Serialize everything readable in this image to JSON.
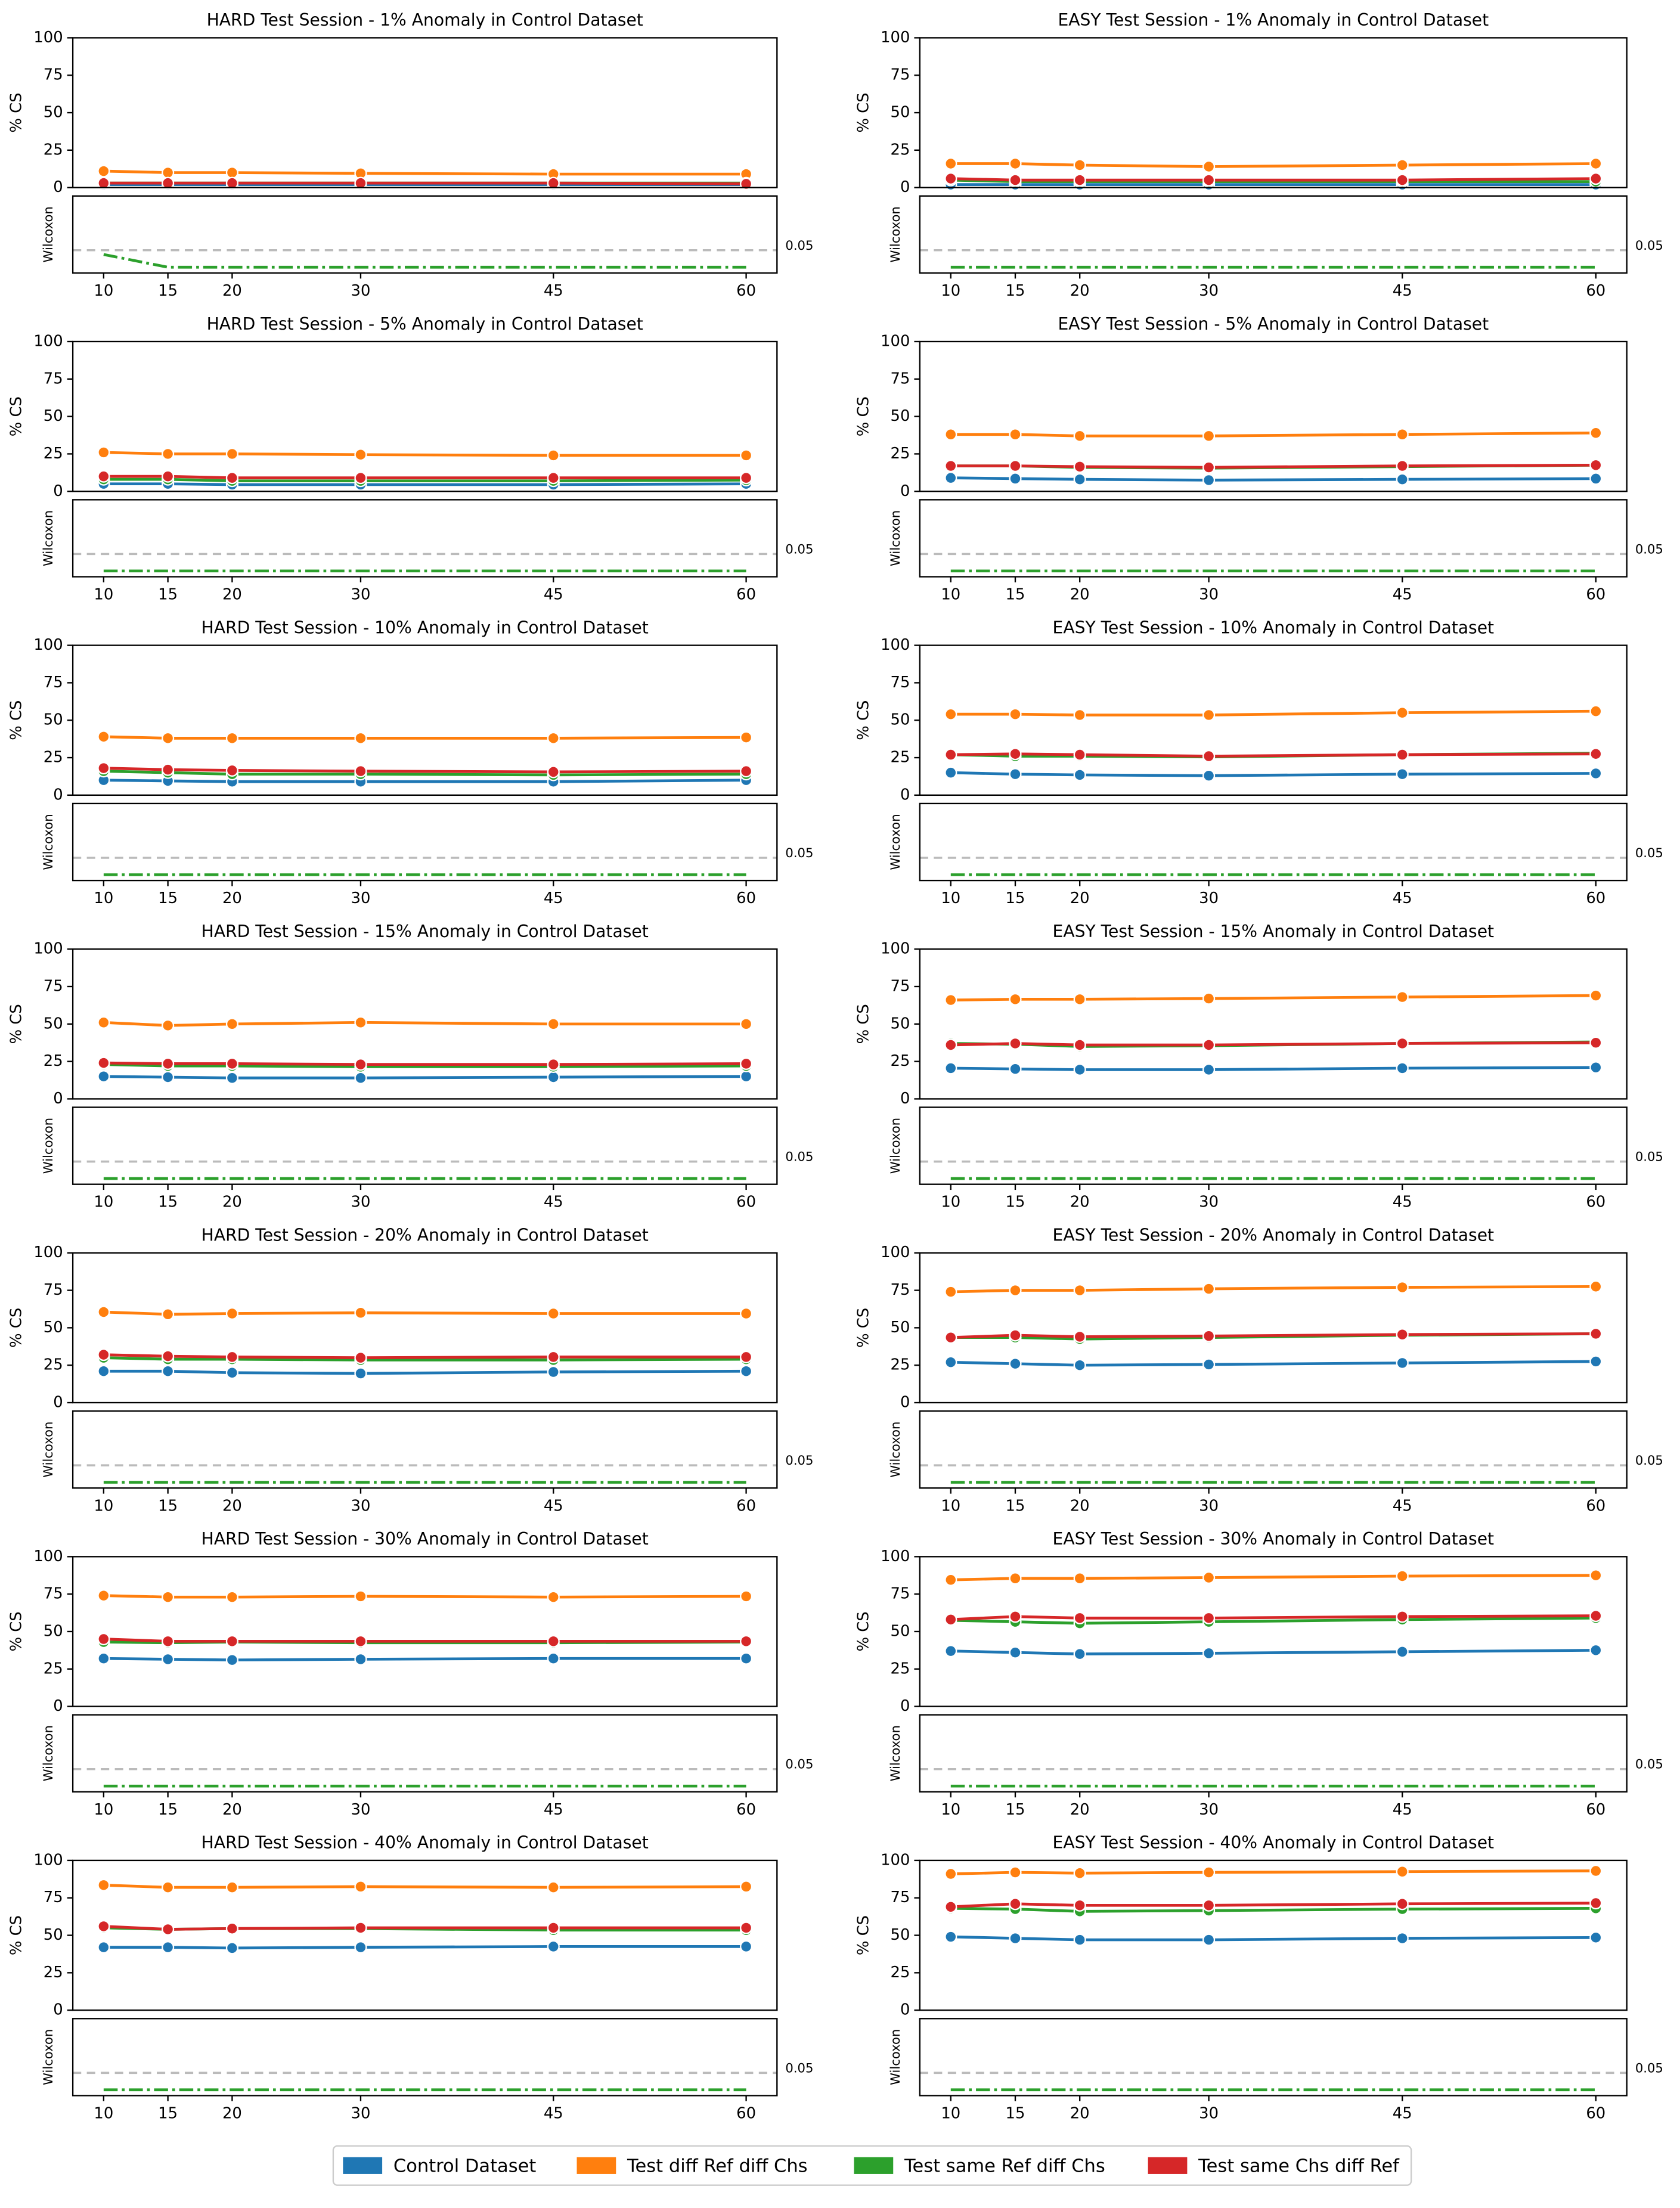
{
  "chart_data": [
    {
      "type": "line",
      "title": "HARD Test Session - 1% Anomaly in Control Dataset",
      "ylabel": "% CS",
      "x": [
        10,
        15,
        20,
        30,
        45,
        60
      ],
      "xlim": [
        7.6,
        62.4
      ],
      "xticks": [
        10,
        15,
        20,
        30,
        45,
        60
      ],
      "ylim": [
        0,
        100
      ],
      "yticks": [
        0,
        25,
        50,
        75,
        100
      ],
      "series": [
        {
          "values": [
            2,
            2,
            2,
            2,
            2,
            2
          ]
        },
        {
          "values": [
            11,
            10,
            10,
            9.5,
            9,
            9
          ]
        },
        {
          "values": [
            3,
            3,
            3,
            3,
            3,
            3
          ]
        },
        {
          "values": [
            3,
            3,
            3,
            3,
            3,
            2.5
          ]
        }
      ],
      "wilcoxon": {
        "ylabel": "Wilcoxon",
        "ylim": [
          -0.017,
          0.21
        ],
        "threshold": 0.05,
        "values": [
          0.0375,
          0,
          0,
          0,
          0,
          0
        ]
      }
    },
    {
      "type": "line",
      "title": "EASY Test Session - 1% Anomaly in Control Dataset",
      "ylabel": "% CS",
      "x": [
        10,
        15,
        20,
        30,
        45,
        60
      ],
      "xlim": [
        7.6,
        62.4
      ],
      "xticks": [
        10,
        15,
        20,
        30,
        45,
        60
      ],
      "ylim": [
        0,
        100
      ],
      "yticks": [
        0,
        25,
        50,
        75,
        100
      ],
      "series": [
        {
          "values": [
            2,
            2,
            2,
            2,
            2,
            2
          ]
        },
        {
          "values": [
            16,
            16,
            15,
            14,
            15,
            16
          ]
        },
        {
          "values": [
            5,
            4,
            4,
            4,
            4,
            4
          ]
        },
        {
          "values": [
            6,
            5,
            5,
            5,
            5,
            6
          ]
        }
      ],
      "wilcoxon": {
        "ylabel": "Wilcoxon",
        "ylim": [
          -0.017,
          0.21
        ],
        "threshold": 0.05,
        "values": [
          0,
          0,
          0,
          0,
          0,
          0
        ]
      }
    },
    {
      "type": "line",
      "title": "HARD Test Session - 5% Anomaly in Control Dataset",
      "ylabel": "% CS",
      "x": [
        10,
        15,
        20,
        30,
        45,
        60
      ],
      "xlim": [
        7.6,
        62.4
      ],
      "xticks": [
        10,
        15,
        20,
        30,
        45,
        60
      ],
      "ylim": [
        0,
        100
      ],
      "yticks": [
        0,
        25,
        50,
        75,
        100
      ],
      "series": [
        {
          "values": [
            5,
            5,
            4.5,
            4.5,
            4.5,
            5
          ]
        },
        {
          "values": [
            26,
            25,
            25,
            24.5,
            24,
            24
          ]
        },
        {
          "values": [
            8,
            8,
            7,
            7,
            7,
            7.5
          ]
        },
        {
          "values": [
            10,
            10,
            9,
            9,
            9,
            9
          ]
        }
      ],
      "wilcoxon": {
        "ylabel": "Wilcoxon",
        "ylim": [
          -0.017,
          0.21
        ],
        "threshold": 0.05,
        "values": [
          0,
          0,
          0,
          0,
          0,
          0
        ]
      }
    },
    {
      "type": "line",
      "title": "EASY Test Session - 5% Anomaly in Control Dataset",
      "ylabel": "% CS",
      "x": [
        10,
        15,
        20,
        30,
        45,
        60
      ],
      "xlim": [
        7.6,
        62.4
      ],
      "xticks": [
        10,
        15,
        20,
        30,
        45,
        60
      ],
      "ylim": [
        0,
        100
      ],
      "yticks": [
        0,
        25,
        50,
        75,
        100
      ],
      "series": [
        {
          "values": [
            9,
            8.5,
            8,
            7.5,
            8,
            8.5
          ]
        },
        {
          "values": [
            38,
            38,
            37,
            37,
            38,
            39
          ]
        },
        {
          "values": [
            17,
            17,
            16,
            15.5,
            16.5,
            17.5
          ]
        },
        {
          "values": [
            17,
            17,
            16.5,
            16,
            17,
            17.5
          ]
        }
      ],
      "wilcoxon": {
        "ylabel": "Wilcoxon",
        "ylim": [
          -0.017,
          0.21
        ],
        "threshold": 0.05,
        "values": [
          0,
          0,
          0,
          0,
          0,
          0
        ]
      }
    },
    {
      "type": "line",
      "title": "HARD Test Session - 10% Anomaly in Control Dataset",
      "ylabel": "% CS",
      "x": [
        10,
        15,
        20,
        30,
        45,
        60
      ],
      "xlim": [
        7.6,
        62.4
      ],
      "xticks": [
        10,
        15,
        20,
        30,
        45,
        60
      ],
      "ylim": [
        0,
        100
      ],
      "yticks": [
        0,
        25,
        50,
        75,
        100
      ],
      "series": [
        {
          "values": [
            10,
            9.5,
            9,
            9,
            9,
            10
          ]
        },
        {
          "values": [
            39,
            38,
            38,
            38,
            38,
            38.5
          ]
        },
        {
          "values": [
            16,
            15,
            14,
            14,
            13.5,
            14
          ]
        },
        {
          "values": [
            18,
            17,
            16.5,
            16,
            15.5,
            16
          ]
        }
      ],
      "wilcoxon": {
        "ylabel": "Wilcoxon",
        "ylim": [
          -0.017,
          0.21
        ],
        "threshold": 0.05,
        "values": [
          0,
          0,
          0,
          0,
          0,
          0
        ]
      }
    },
    {
      "type": "line",
      "title": "EASY Test Session - 10% Anomaly in Control Dataset",
      "ylabel": "% CS",
      "x": [
        10,
        15,
        20,
        30,
        45,
        60
      ],
      "xlim": [
        7.6,
        62.4
      ],
      "xticks": [
        10,
        15,
        20,
        30,
        45,
        60
      ],
      "ylim": [
        0,
        100
      ],
      "yticks": [
        0,
        25,
        50,
        75,
        100
      ],
      "series": [
        {
          "values": [
            15,
            14,
            13.5,
            13,
            14,
            14.5
          ]
        },
        {
          "values": [
            54,
            54,
            53.5,
            53.5,
            55,
            56
          ]
        },
        {
          "values": [
            27,
            26,
            26,
            25.5,
            27,
            28
          ]
        },
        {
          "values": [
            27,
            27.5,
            27,
            26,
            27,
            27.5
          ]
        }
      ],
      "wilcoxon": {
        "ylabel": "Wilcoxon",
        "ylim": [
          -0.017,
          0.21
        ],
        "threshold": 0.05,
        "values": [
          0,
          0,
          0,
          0,
          0,
          0
        ]
      }
    },
    {
      "type": "line",
      "title": "HARD Test Session - 15% Anomaly in Control Dataset",
      "ylabel": "% CS",
      "x": [
        10,
        15,
        20,
        30,
        45,
        60
      ],
      "xlim": [
        7.6,
        62.4
      ],
      "xticks": [
        10,
        15,
        20,
        30,
        45,
        60
      ],
      "ylim": [
        0,
        100
      ],
      "yticks": [
        0,
        25,
        50,
        75,
        100
      ],
      "series": [
        {
          "values": [
            15,
            14.5,
            14,
            14,
            14.5,
            15
          ]
        },
        {
          "values": [
            51,
            49,
            50,
            51,
            50,
            50
          ]
        },
        {
          "values": [
            23,
            22,
            22,
            21.5,
            21.5,
            22
          ]
        },
        {
          "values": [
            24,
            23.5,
            23.5,
            23,
            23,
            23.5
          ]
        }
      ],
      "wilcoxon": {
        "ylabel": "Wilcoxon",
        "ylim": [
          -0.017,
          0.21
        ],
        "threshold": 0.05,
        "values": [
          0,
          0,
          0,
          0,
          0,
          0
        ]
      }
    },
    {
      "type": "line",
      "title": "EASY Test Session - 15% Anomaly in Control Dataset",
      "ylabel": "% CS",
      "x": [
        10,
        15,
        20,
        30,
        45,
        60
      ],
      "xlim": [
        7.6,
        62.4
      ],
      "xticks": [
        10,
        15,
        20,
        30,
        45,
        60
      ],
      "ylim": [
        0,
        100
      ],
      "yticks": [
        0,
        25,
        50,
        75,
        100
      ],
      "series": [
        {
          "values": [
            20.5,
            20,
            19.5,
            19.5,
            20.5,
            21
          ]
        },
        {
          "values": [
            66,
            66.5,
            66.5,
            67,
            68,
            69
          ]
        },
        {
          "values": [
            37,
            36.5,
            35,
            35.5,
            37,
            38
          ]
        },
        {
          "values": [
            36,
            37,
            36,
            36,
            37,
            37.5
          ]
        }
      ],
      "wilcoxon": {
        "ylabel": "Wilcoxon",
        "ylim": [
          -0.017,
          0.21
        ],
        "threshold": 0.05,
        "values": [
          0,
          0,
          0,
          0,
          0,
          0
        ]
      }
    },
    {
      "type": "line",
      "title": "HARD Test Session - 20% Anomaly in Control Dataset",
      "ylabel": "% CS",
      "x": [
        10,
        15,
        20,
        30,
        45,
        60
      ],
      "xlim": [
        7.6,
        62.4
      ],
      "xticks": [
        10,
        15,
        20,
        30,
        45,
        60
      ],
      "ylim": [
        0,
        100
      ],
      "yticks": [
        0,
        25,
        50,
        75,
        100
      ],
      "series": [
        {
          "values": [
            21,
            21,
            20,
            19.5,
            20.5,
            21
          ]
        },
        {
          "values": [
            60.5,
            59,
            59.5,
            60,
            59.5,
            59.5
          ]
        },
        {
          "values": [
            30,
            29,
            29,
            28.5,
            28.5,
            29
          ]
        },
        {
          "values": [
            32,
            31,
            30.5,
            30,
            30.5,
            30.5
          ]
        }
      ],
      "wilcoxon": {
        "ylabel": "Wilcoxon",
        "ylim": [
          -0.017,
          0.21
        ],
        "threshold": 0.05,
        "values": [
          0,
          0,
          0,
          0,
          0,
          0
        ]
      }
    },
    {
      "type": "line",
      "title": "EASY Test Session - 20% Anomaly in Control Dataset",
      "ylabel": "% CS",
      "x": [
        10,
        15,
        20,
        30,
        45,
        60
      ],
      "xlim": [
        7.6,
        62.4
      ],
      "xticks": [
        10,
        15,
        20,
        30,
        45,
        60
      ],
      "ylim": [
        0,
        100
      ],
      "yticks": [
        0,
        25,
        50,
        75,
        100
      ],
      "series": [
        {
          "values": [
            27,
            26,
            25,
            25.5,
            26.5,
            27.5
          ]
        },
        {
          "values": [
            74,
            75,
            75,
            76,
            77,
            77.5
          ]
        },
        {
          "values": [
            43.5,
            43.5,
            42.5,
            43.5,
            45,
            46
          ]
        },
        {
          "values": [
            43.5,
            45,
            44,
            44.5,
            45.5,
            46
          ]
        }
      ],
      "wilcoxon": {
        "ylabel": "Wilcoxon",
        "ylim": [
          -0.017,
          0.21
        ],
        "threshold": 0.05,
        "values": [
          0,
          0,
          0,
          0,
          0,
          0
        ]
      }
    },
    {
      "type": "line",
      "title": "HARD Test Session - 30% Anomaly in Control Dataset",
      "ylabel": "% CS",
      "x": [
        10,
        15,
        20,
        30,
        45,
        60
      ],
      "xlim": [
        7.6,
        62.4
      ],
      "xticks": [
        10,
        15,
        20,
        30,
        45,
        60
      ],
      "ylim": [
        0,
        100
      ],
      "yticks": [
        0,
        25,
        50,
        75,
        100
      ],
      "series": [
        {
          "values": [
            32,
            31.5,
            31,
            31.5,
            32,
            32
          ]
        },
        {
          "values": [
            74,
            73,
            73,
            73.5,
            73,
            73.5
          ]
        },
        {
          "values": [
            43,
            42.5,
            43,
            42.5,
            42.5,
            43
          ]
        },
        {
          "values": [
            45,
            43.5,
            43.5,
            43.5,
            43.5,
            43.5
          ]
        }
      ],
      "wilcoxon": {
        "ylabel": "Wilcoxon",
        "ylim": [
          -0.017,
          0.21
        ],
        "threshold": 0.05,
        "values": [
          0,
          0,
          0,
          0,
          0,
          0
        ]
      }
    },
    {
      "type": "line",
      "title": "EASY Test Session - 30% Anomaly in Control Dataset",
      "ylabel": "% CS",
      "x": [
        10,
        15,
        20,
        30,
        45,
        60
      ],
      "xlim": [
        7.6,
        62.4
      ],
      "xticks": [
        10,
        15,
        20,
        30,
        45,
        60
      ],
      "ylim": [
        0,
        100
      ],
      "yticks": [
        0,
        25,
        50,
        75,
        100
      ],
      "series": [
        {
          "values": [
            37,
            36,
            35,
            35.5,
            36.5,
            37.5
          ]
        },
        {
          "values": [
            84.5,
            85.5,
            85.5,
            86,
            87,
            87.5
          ]
        },
        {
          "values": [
            57.5,
            56.5,
            55.5,
            56.5,
            58,
            59
          ]
        },
        {
          "values": [
            58,
            60,
            59,
            59,
            60,
            60.5
          ]
        }
      ],
      "wilcoxon": {
        "ylabel": "Wilcoxon",
        "ylim": [
          -0.017,
          0.21
        ],
        "threshold": 0.05,
        "values": [
          0,
          0,
          0,
          0,
          0,
          0
        ]
      }
    },
    {
      "type": "line",
      "title": "HARD Test Session - 40% Anomaly in Control Dataset",
      "ylabel": "% CS",
      "x": [
        10,
        15,
        20,
        30,
        45,
        60
      ],
      "xlim": [
        7.6,
        62.4
      ],
      "xticks": [
        10,
        15,
        20,
        30,
        45,
        60
      ],
      "ylim": [
        0,
        100
      ],
      "yticks": [
        0,
        25,
        50,
        75,
        100
      ],
      "series": [
        {
          "values": [
            42,
            42,
            41.5,
            42,
            42.5,
            42.5
          ]
        },
        {
          "values": [
            83.5,
            82,
            82,
            82.5,
            82,
            82.5
          ]
        },
        {
          "values": [
            55,
            54,
            54.5,
            54.5,
            53.5,
            53.5
          ]
        },
        {
          "values": [
            56,
            54,
            54.5,
            55,
            55,
            55
          ]
        }
      ],
      "wilcoxon": {
        "ylabel": "Wilcoxon",
        "ylim": [
          -0.017,
          0.21
        ],
        "threshold": 0.05,
        "values": [
          0,
          0,
          0,
          0,
          0,
          0
        ]
      }
    },
    {
      "type": "line",
      "title": "EASY Test Session - 40% Anomaly in Control Dataset",
      "ylabel": "% CS",
      "x": [
        10,
        15,
        20,
        30,
        45,
        60
      ],
      "xlim": [
        7.6,
        62.4
      ],
      "xticks": [
        10,
        15,
        20,
        30,
        45,
        60
      ],
      "ylim": [
        0,
        100
      ],
      "yticks": [
        0,
        25,
        50,
        75,
        100
      ],
      "series": [
        {
          "values": [
            49,
            48,
            47,
            47,
            48,
            48.5
          ]
        },
        {
          "values": [
            91,
            92,
            91.5,
            92,
            92.5,
            93
          ]
        },
        {
          "values": [
            68,
            67.5,
            66,
            66.5,
            67.5,
            68
          ]
        },
        {
          "values": [
            69,
            71,
            70,
            70,
            71,
            71.5
          ]
        }
      ],
      "wilcoxon": {
        "ylabel": "Wilcoxon",
        "ylim": [
          -0.017,
          0.21
        ],
        "threshold": 0.05,
        "values": [
          0,
          0,
          0,
          0,
          0,
          0
        ]
      }
    }
  ],
  "legend": [
    {
      "name": "Control Dataset",
      "color": "#1f77b4"
    },
    {
      "name": "Test diff Ref diff Chs",
      "color": "#ff7f0e"
    },
    {
      "name": "Test same Ref diff Chs",
      "color": "#2ca02c"
    },
    {
      "name": "Test same Chs diff Ref",
      "color": "#d62728"
    }
  ]
}
